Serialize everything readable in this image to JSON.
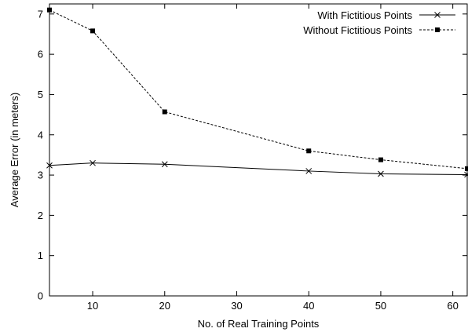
{
  "chart_data": {
    "type": "line",
    "title": "",
    "xlabel": "No. of Real Training Points",
    "ylabel": "Average Error (in meters)",
    "xlim": [
      4,
      62
    ],
    "ylim": [
      0,
      7.25
    ],
    "xticks": [
      10,
      20,
      30,
      40,
      50,
      60
    ],
    "yticks": [
      0,
      1,
      2,
      3,
      4,
      5,
      6,
      7
    ],
    "grid": false,
    "legend": "top-right",
    "series": [
      {
        "name": "With Fictitious Points",
        "style": "solid",
        "marker": "x",
        "color": "#000000",
        "x": [
          4,
          10,
          20,
          40,
          50,
          62
        ],
        "y": [
          3.24,
          3.3,
          3.27,
          3.1,
          3.03,
          3.01
        ]
      },
      {
        "name": "Without Fictitious Points",
        "style": "dashed",
        "marker": "square",
        "color": "#000000",
        "x": [
          4,
          10,
          20,
          40,
          50,
          62
        ],
        "y": [
          7.1,
          6.58,
          4.57,
          3.6,
          3.38,
          3.16
        ]
      }
    ]
  }
}
